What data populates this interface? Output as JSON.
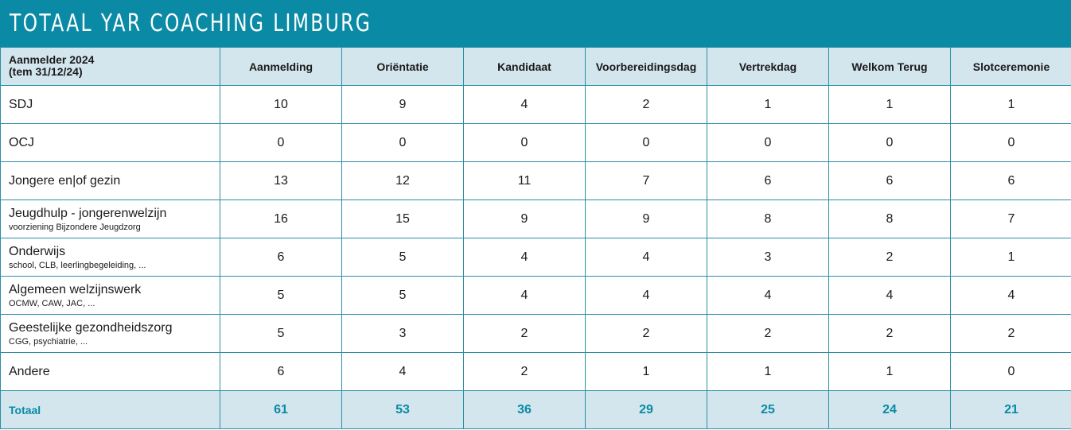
{
  "title": "Totaal YAR Coaching Limburg",
  "header": {
    "first_line1": "Aanmelder 2024",
    "first_line2": "(tem 31/12/24)",
    "columns": [
      "Aanmelding",
      "Oriëntatie",
      "Kandidaat",
      "Voorbereidingsdag",
      "Vertrekdag",
      "Welkom Terug",
      "Slotceremonie"
    ]
  },
  "rows": [
    {
      "label": "SDJ",
      "sub": "",
      "values": [
        "10",
        "9",
        "4",
        "2",
        "1",
        "1",
        "1"
      ]
    },
    {
      "label": "OCJ",
      "sub": "",
      "values": [
        "0",
        "0",
        "0",
        "0",
        "0",
        "0",
        "0"
      ]
    },
    {
      "label": "Jongere en|of gezin",
      "sub": "",
      "values": [
        "13",
        "12",
        "11",
        "7",
        "6",
        "6",
        "6"
      ]
    },
    {
      "label": "Jeugdhulp - jongerenwelzijn",
      "sub": "voorziening Bijzondere Jeugdzorg",
      "values": [
        "16",
        "15",
        "9",
        "9",
        "8",
        "8",
        "7"
      ]
    },
    {
      "label": "Onderwijs",
      "sub": "school, CLB, leerlingbegeleiding, ...",
      "values": [
        "6",
        "5",
        "4",
        "4",
        "3",
        "2",
        "1"
      ]
    },
    {
      "label": "Algemeen welzijnswerk",
      "sub": "OCMW, CAW, JAC, ...",
      "values": [
        "5",
        "5",
        "4",
        "4",
        "4",
        "4",
        "4"
      ]
    },
    {
      "label": "Geestelijke gezondheidszorg",
      "sub": "CGG, psychiatrie, ...",
      "values": [
        "5",
        "3",
        "2",
        "2",
        "2",
        "2",
        "2"
      ]
    },
    {
      "label": "Andere",
      "sub": "",
      "values": [
        "6",
        "4",
        "2",
        "1",
        "1",
        "1",
        "0"
      ]
    }
  ],
  "total": {
    "label": "Totaal",
    "values": [
      "61",
      "53",
      "36",
      "29",
      "25",
      "24",
      "21"
    ]
  }
}
